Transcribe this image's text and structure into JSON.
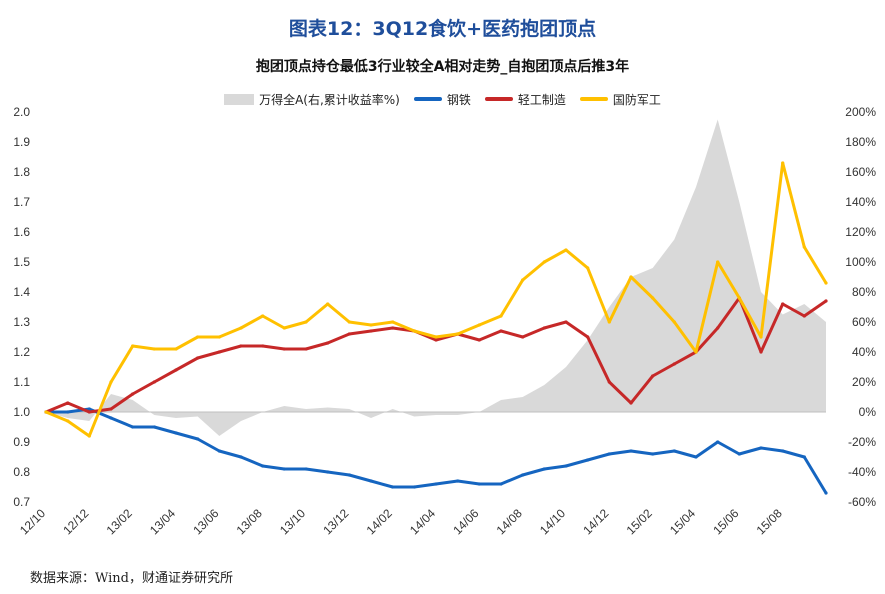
{
  "figure": {
    "title": "图表12：3Q12食饮+医药抱团顶点",
    "source": "数据来源：Wind，财通证券研究所"
  },
  "chart_data": {
    "type": "line",
    "title": "抱团顶点持仓最低3行业较全A相对走势_自抱团顶点后推3年",
    "x": [
      "2012-10",
      "2012-11",
      "2012-12",
      "2013-01",
      "2013-02",
      "2013-03",
      "2013-04",
      "2013-05",
      "2013-06",
      "2013-07",
      "2013-08",
      "2013-09",
      "2013-10",
      "2013-11",
      "2013-12",
      "2014-01",
      "2014-02",
      "2014-03",
      "2014-04",
      "2014-05",
      "2014-06",
      "2014-07",
      "2014-08",
      "2014-09",
      "2014-10",
      "2014-11",
      "2014-12",
      "2015-01",
      "2015-02",
      "2015-03",
      "2015-04",
      "2015-05",
      "2015-06",
      "2015-07",
      "2015-08",
      "2015-09",
      "2015-10"
    ],
    "x_tick_labels": [
      "12/10",
      "12/12",
      "13/02",
      "13/04",
      "13/06",
      "13/08",
      "13/10",
      "13/12",
      "14/02",
      "14/04",
      "14/06",
      "14/08",
      "14/10",
      "14/12",
      "15/02",
      "15/04",
      "15/06",
      "15/08"
    ],
    "y_left": {
      "min": 0.7,
      "max": 2.0,
      "ticks": [
        "0.7",
        "0.8",
        "0.9",
        "1.0",
        "1.1",
        "1.2",
        "1.3",
        "1.4",
        "1.5",
        "1.6",
        "1.7",
        "1.8",
        "1.9",
        "2.0"
      ]
    },
    "y_right": {
      "min": -60,
      "max": 200,
      "unit": "%",
      "ticks": [
        "-60%",
        "-40%",
        "-20%",
        "0%",
        "20%",
        "40%",
        "60%",
        "80%",
        "100%",
        "120%",
        "140%",
        "160%",
        "180%",
        "200%"
      ]
    },
    "legend_position": "top",
    "series": [
      {
        "name": "万得全A(右,累计收益率%)",
        "kind": "area",
        "axis": "right",
        "color": "#d9d9d9",
        "values": [
          0,
          -4,
          -6,
          12,
          8,
          -2,
          -4,
          -3,
          -16,
          -6,
          0,
          4,
          2,
          3,
          2,
          -4,
          2,
          -3,
          -2,
          -2,
          0,
          8,
          10,
          18,
          30,
          48,
          70,
          90,
          96,
          115,
          150,
          195,
          140,
          80,
          65,
          72,
          60
        ]
      },
      {
        "name": "钢铁",
        "kind": "line",
        "axis": "left",
        "color": "#1565c0",
        "values": [
          1.0,
          1.0,
          1.01,
          0.98,
          0.95,
          0.95,
          0.93,
          0.91,
          0.87,
          0.85,
          0.82,
          0.81,
          0.81,
          0.8,
          0.79,
          0.77,
          0.75,
          0.75,
          0.76,
          0.77,
          0.76,
          0.76,
          0.79,
          0.81,
          0.82,
          0.84,
          0.86,
          0.87,
          0.86,
          0.87,
          0.85,
          0.9,
          0.86,
          0.88,
          0.87,
          0.85,
          0.73
        ]
      },
      {
        "name": "轻工制造",
        "kind": "line",
        "axis": "left",
        "color": "#c62828",
        "values": [
          1.0,
          1.03,
          1.0,
          1.01,
          1.06,
          1.1,
          1.14,
          1.18,
          1.2,
          1.22,
          1.22,
          1.21,
          1.21,
          1.23,
          1.26,
          1.27,
          1.28,
          1.27,
          1.24,
          1.26,
          1.24,
          1.27,
          1.25,
          1.28,
          1.3,
          1.25,
          1.1,
          1.03,
          1.12,
          1.16,
          1.2,
          1.28,
          1.38,
          1.2,
          1.36,
          1.32,
          1.37
        ]
      },
      {
        "name": "国防军工",
        "kind": "line",
        "axis": "left",
        "color": "#ffc000",
        "values": [
          1.0,
          0.97,
          0.92,
          1.1,
          1.22,
          1.21,
          1.21,
          1.25,
          1.25,
          1.28,
          1.32,
          1.28,
          1.3,
          1.36,
          1.3,
          1.29,
          1.3,
          1.27,
          1.25,
          1.26,
          1.29,
          1.32,
          1.44,
          1.5,
          1.54,
          1.48,
          1.3,
          1.45,
          1.38,
          1.3,
          1.2,
          1.5,
          1.38,
          1.25,
          1.83,
          1.55,
          1.43
        ]
      }
    ]
  }
}
